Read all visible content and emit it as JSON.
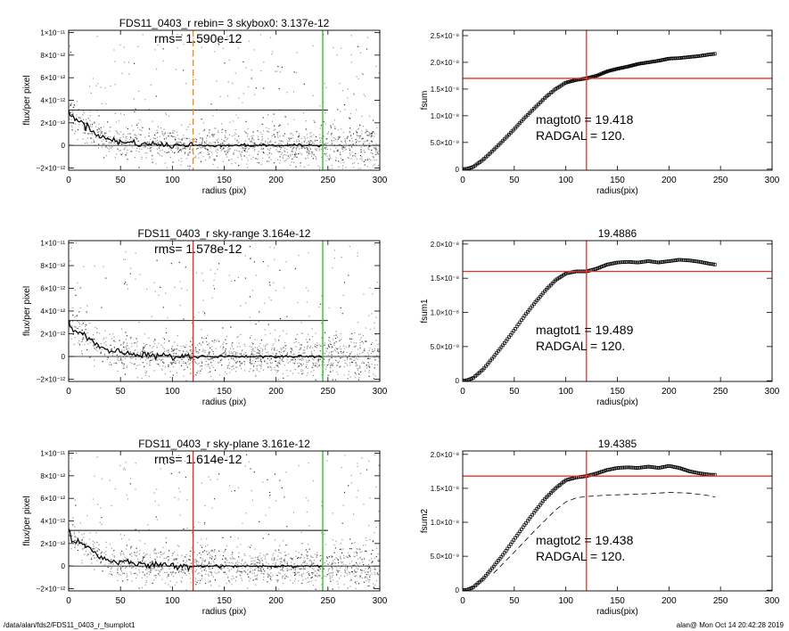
{
  "footer": {
    "path": "/data/alan/fds2/FDS11_0403_r_fsumplot1",
    "stamp": "alan@  Mon Oct 14 20:42:28 2019"
  },
  "colors": {
    "red": "#e8302b",
    "green": "#2ec52e",
    "orange": "#f08a1e",
    "scatter": "#9a9a9a",
    "profile": "#000000"
  },
  "chart_data": [
    {
      "type": "scatter",
      "title": "FDS11_0403_r rebin= 3    skybox0:  3.137e-12",
      "annotation": "rms= 1.590e-12",
      "xlabel": "radius (pix)",
      "ylabel": "flux/per pixel",
      "xlim": [
        0,
        300
      ],
      "ylim": [
        -2.2e-12,
        1.02e-11
      ],
      "xticks": [
        "0",
        "50",
        "100",
        "150",
        "200",
        "250",
        "300"
      ],
      "yticks": [
        {
          "v": -2e-12,
          "label": "−2×10⁻¹²"
        },
        {
          "v": 0,
          "label": "0"
        },
        {
          "v": 2e-12,
          "label": "2×10⁻¹²"
        },
        {
          "v": 4e-12,
          "label": "4×10⁻¹²"
        },
        {
          "v": 6e-12,
          "label": "6×10⁻¹²"
        },
        {
          "v": 8e-12,
          "label": "8×10⁻¹²"
        },
        {
          "v": 1e-11,
          "label": "1×10⁻¹¹"
        }
      ],
      "hline": 3.137e-12,
      "zero_line": true,
      "vlines": [
        {
          "x": 120,
          "color": "orange",
          "dashed": true
        },
        {
          "x": 245,
          "color": "green",
          "dashed": false
        }
      ],
      "profile_x": [
        0,
        3,
        6,
        10,
        15,
        20,
        25,
        30,
        35,
        40,
        50,
        60,
        70,
        80,
        90,
        100,
        120,
        150,
        200,
        245
      ],
      "profile_y": [
        3.3e-12,
        2.4e-12,
        2.3e-12,
        2.2e-12,
        1.9e-12,
        1.5e-12,
        1.2e-12,
        9e-13,
        6e-13,
        5e-13,
        3e-13,
        2.5e-13,
        1.5e-13,
        1e-13,
        5e-14,
        0,
        0,
        0,
        0,
        0
      ]
    },
    {
      "type": "line",
      "title": "",
      "xlabel": "radius(pix)",
      "ylabel": "fsum",
      "xlim": [
        0,
        300
      ],
      "ylim": [
        -2e-10,
        2.6e-08
      ],
      "xticks": [
        "0",
        "50",
        "100",
        "150",
        "200",
        "250",
        "300"
      ],
      "yticks": [
        {
          "v": 0,
          "label": "0"
        },
        {
          "v": 5e-09,
          "label": "5.0×10⁻⁹"
        },
        {
          "v": 1e-08,
          "label": "1.0×10⁻⁸"
        },
        {
          "v": 1.5e-08,
          "label": "1.5×10⁻⁸"
        },
        {
          "v": 2e-08,
          "label": "2.0×10⁻⁸"
        },
        {
          "v": 2.5e-08,
          "label": "2.5×10⁻⁸"
        }
      ],
      "annotations": [
        "magtot0 =  19.418",
        "RADGAL =    120."
      ],
      "crosshair": {
        "x": 120,
        "y": 1.7e-08
      },
      "x": [
        0,
        5,
        10,
        20,
        30,
        40,
        50,
        60,
        70,
        80,
        90,
        100,
        110,
        120,
        130,
        140,
        150,
        160,
        170,
        180,
        190,
        200,
        210,
        220,
        230,
        240,
        245
      ],
      "y": [
        0,
        1e-10,
        4e-10,
        1.8e-09,
        3.6e-09,
        5.5e-09,
        7.5e-09,
        9.6e-09,
        1.15e-08,
        1.34e-08,
        1.5e-08,
        1.62e-08,
        1.67e-08,
        1.7e-08,
        1.75e-08,
        1.83e-08,
        1.88e-08,
        1.92e-08,
        1.97e-08,
        2e-08,
        2.03e-08,
        2.07e-08,
        2.08e-08,
        2.1e-08,
        2.12e-08,
        2.15e-08,
        2.16e-08
      ],
      "error_band": true
    },
    {
      "type": "scatter",
      "title": "FDS11_0403_r sky-range  3.164e-12",
      "annotation": "rms= 1.578e-12",
      "xlabel": "radius (pix)",
      "ylabel": "flux/per pixel",
      "xlim": [
        0,
        300
      ],
      "ylim": [
        -2.2e-12,
        1.02e-11
      ],
      "xticks": [
        "0",
        "50",
        "100",
        "150",
        "200",
        "250",
        "300"
      ],
      "yticks": [
        {
          "v": -2e-12,
          "label": "−2×10⁻¹²"
        },
        {
          "v": 0,
          "label": "0"
        },
        {
          "v": 2e-12,
          "label": "2×10⁻¹²"
        },
        {
          "v": 4e-12,
          "label": "4×10⁻¹²"
        },
        {
          "v": 6e-12,
          "label": "6×10⁻¹²"
        },
        {
          "v": 8e-12,
          "label": "8×10⁻¹²"
        },
        {
          "v": 1e-11,
          "label": "1×10⁻¹¹"
        }
      ],
      "hline": 3.164e-12,
      "zero_line": true,
      "vlines": [
        {
          "x": 120,
          "color": "red",
          "dashed": false
        },
        {
          "x": 245,
          "color": "green",
          "dashed": false
        }
      ],
      "profile_x": [
        0,
        3,
        6,
        10,
        15,
        20,
        25,
        30,
        35,
        40,
        50,
        60,
        70,
        80,
        90,
        100,
        120,
        150,
        200,
        245
      ],
      "profile_y": [
        3.3e-12,
        2.4e-12,
        2.3e-12,
        2.2e-12,
        1.9e-12,
        1.5e-12,
        1.2e-12,
        9e-13,
        6e-13,
        5e-13,
        3e-13,
        2.5e-13,
        1.5e-13,
        1e-13,
        5e-14,
        0,
        0,
        0,
        0,
        0
      ]
    },
    {
      "type": "line",
      "title": "19.4886",
      "xlabel": "radius(pix)",
      "ylabel": "fsum1",
      "xlim": [
        0,
        300
      ],
      "ylim": [
        -1e-10,
        2.05e-08
      ],
      "xticks": [
        "0",
        "50",
        "100",
        "150",
        "200",
        "250",
        "300"
      ],
      "yticks": [
        {
          "v": 0,
          "label": "0"
        },
        {
          "v": 5e-09,
          "label": "5.0×10⁻⁹"
        },
        {
          "v": 1e-08,
          "label": "1.0×10⁻⁸"
        },
        {
          "v": 1.5e-08,
          "label": "1.5×10⁻⁸"
        },
        {
          "v": 2e-08,
          "label": "2.0×10⁻⁸"
        }
      ],
      "annotations": [
        "magtot1 =  19.489",
        "RADGAL =    120."
      ],
      "crosshair": {
        "x": 120,
        "y": 1.6e-08
      },
      "x": [
        0,
        5,
        10,
        20,
        30,
        40,
        50,
        60,
        70,
        80,
        90,
        100,
        110,
        120,
        130,
        140,
        150,
        160,
        170,
        180,
        190,
        200,
        210,
        220,
        230,
        240,
        245
      ],
      "y": [
        0,
        1e-10,
        4e-10,
        1.7e-09,
        3.5e-09,
        5.4e-09,
        7.4e-09,
        9.5e-09,
        1.14e-08,
        1.32e-08,
        1.47e-08,
        1.57e-08,
        1.6e-08,
        1.6e-08,
        1.64e-08,
        1.7e-08,
        1.73e-08,
        1.74e-08,
        1.73e-08,
        1.75e-08,
        1.73e-08,
        1.75e-08,
        1.77e-08,
        1.76e-08,
        1.74e-08,
        1.71e-08,
        1.7e-08
      ],
      "error_band": false
    },
    {
      "type": "scatter",
      "title": "FDS11_0403_r sky-plane  3.161e-12",
      "annotation": "rms= 1.614e-12",
      "xlabel": "radius (pix)",
      "ylabel": "flux/per pixel",
      "xlim": [
        0,
        300
      ],
      "ylim": [
        -2.2e-12,
        1.02e-11
      ],
      "xticks": [
        "0",
        "50",
        "100",
        "150",
        "200",
        "250",
        "300"
      ],
      "yticks": [
        {
          "v": -2e-12,
          "label": "−2×10⁻¹²"
        },
        {
          "v": 0,
          "label": "0"
        },
        {
          "v": 2e-12,
          "label": "2×10⁻¹²"
        },
        {
          "v": 4e-12,
          "label": "4×10⁻¹²"
        },
        {
          "v": 6e-12,
          "label": "6×10⁻¹²"
        },
        {
          "v": 8e-12,
          "label": "8×10⁻¹²"
        },
        {
          "v": 1e-11,
          "label": "1×10⁻¹¹"
        }
      ],
      "hline": 3.161e-12,
      "zero_line": true,
      "vlines": [
        {
          "x": 120,
          "color": "red",
          "dashed": false
        },
        {
          "x": 245,
          "color": "green",
          "dashed": false
        }
      ],
      "profile_x": [
        0,
        3,
        6,
        10,
        15,
        20,
        25,
        30,
        35,
        40,
        50,
        60,
        70,
        80,
        90,
        100,
        120,
        150,
        200,
        245
      ],
      "profile_y": [
        3.3e-12,
        2.4e-12,
        2.3e-12,
        2.2e-12,
        1.9e-12,
        1.5e-12,
        1.2e-12,
        9e-13,
        6e-13,
        5e-13,
        3e-13,
        2.5e-13,
        1.5e-13,
        1e-13,
        5e-14,
        0,
        0,
        0,
        0,
        0
      ]
    },
    {
      "type": "line",
      "title": "19.4385",
      "xlabel": "radius(pix)",
      "ylabel": "fsum2",
      "xlim": [
        0,
        300
      ],
      "ylim": [
        -1e-10,
        2.05e-08
      ],
      "xticks": [
        "0",
        "50",
        "100",
        "150",
        "200",
        "250",
        "300"
      ],
      "yticks": [
        {
          "v": 0,
          "label": "0"
        },
        {
          "v": 5e-09,
          "label": "5.0×10⁻⁹"
        },
        {
          "v": 1e-08,
          "label": "1.0×10⁻⁸"
        },
        {
          "v": 1.5e-08,
          "label": "1.5×10⁻⁸"
        },
        {
          "v": 2e-08,
          "label": "2.0×10⁻⁸"
        }
      ],
      "annotations": [
        "magtot2 =  19.438",
        "RADGAL =    120."
      ],
      "crosshair": {
        "x": 120,
        "y": 1.68e-08
      },
      "x": [
        0,
        5,
        10,
        20,
        30,
        40,
        50,
        60,
        70,
        80,
        90,
        100,
        110,
        120,
        130,
        140,
        150,
        160,
        170,
        180,
        190,
        200,
        210,
        220,
        230,
        240,
        245
      ],
      "y": [
        0,
        1e-10,
        4e-10,
        1.7e-09,
        3.5e-09,
        5.4e-09,
        7.5e-09,
        9.6e-09,
        1.16e-08,
        1.35e-08,
        1.5e-08,
        1.62e-08,
        1.66e-08,
        1.68e-08,
        1.72e-08,
        1.77e-08,
        1.8e-08,
        1.81e-08,
        1.8e-08,
        1.82e-08,
        1.8e-08,
        1.83e-08,
        1.8e-08,
        1.75e-08,
        1.72e-08,
        1.7e-08,
        1.7e-08
      ],
      "dashed_x": [
        30,
        50,
        70,
        90,
        100,
        110,
        120,
        140,
        160,
        180,
        200,
        220,
        240,
        245
      ],
      "dashed_y": [
        2.5e-09,
        5.6e-09,
        8.8e-09,
        1.18e-08,
        1.3e-08,
        1.36e-08,
        1.38e-08,
        1.4e-08,
        1.41e-08,
        1.42e-08,
        1.44e-08,
        1.43e-08,
        1.39e-08,
        1.37e-08
      ],
      "error_band": false
    }
  ]
}
